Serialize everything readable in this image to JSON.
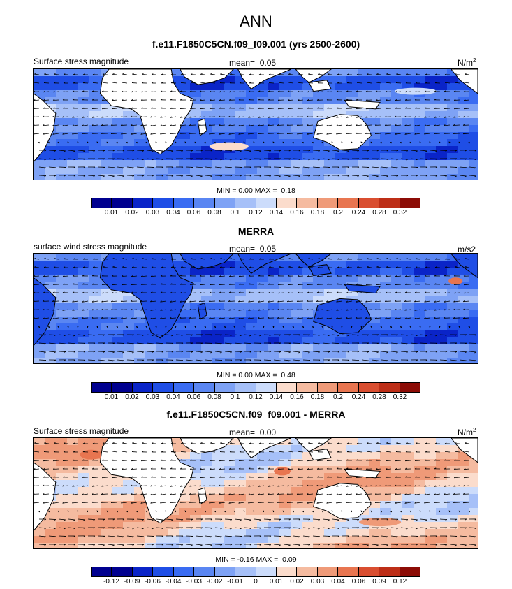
{
  "title": "ANN",
  "colors": {
    "seq": [
      "#00008f",
      "#0a24c8",
      "#1f4ee6",
      "#3a6cf2",
      "#5a86f2",
      "#7ea2f5",
      "#a6c0f8",
      "#ccdcfb",
      "#fbdccc",
      "#f5bba0",
      "#ef9a78",
      "#e87550",
      "#d94e30",
      "#bd2e17",
      "#8c0c06"
    ],
    "land": "#ffffff"
  },
  "panels": [
    {
      "id": "model",
      "title": "f.e11.F1850C5CN.f09_f09.001 (yrs 2500-2600)",
      "left_label": "Surface stress magnitude",
      "mean_label": "mean=",
      "mean_value": "0.05",
      "units_main": "N/m",
      "units_sup": "2",
      "min_label": "MIN =",
      "min_value": "0.00",
      "max_label": "MAX =",
      "max_value": "0.18",
      "colorbar_labels": [
        "0.01",
        "0.02",
        "0.03",
        "0.04",
        "0.06",
        "0.08",
        "0.1",
        "0.12",
        "0.14",
        "0.16",
        "0.18",
        "0.2",
        "0.24",
        "0.28",
        "0.32"
      ]
    },
    {
      "id": "obs",
      "title": "MERRA",
      "left_label": "surface wind stress magnitude",
      "mean_label": "mean=",
      "mean_value": "0.05",
      "units_main": "m/s2",
      "units_sup": "",
      "min_label": "MIN =",
      "min_value": "0.00",
      "max_label": "MAX =",
      "max_value": "0.48",
      "colorbar_labels": [
        "0.01",
        "0.02",
        "0.03",
        "0.04",
        "0.06",
        "0.08",
        "0.1",
        "0.12",
        "0.14",
        "0.16",
        "0.18",
        "0.2",
        "0.24",
        "0.28",
        "0.32"
      ]
    },
    {
      "id": "diff",
      "title": "f.e11.F1850C5CN.f09_f09.001 - MERRA",
      "left_label": "Surface stress magnitude",
      "mean_label": "mean=",
      "mean_value": "0.00",
      "units_main": "N/m",
      "units_sup": "2",
      "min_label": "MIN =",
      "min_value": "-0.16",
      "max_label": "MAX =",
      "max_value": "0.09",
      "colorbar_labels": [
        "-0.12",
        "-0.09",
        "-0.06",
        "-0.04",
        "-0.03",
        "-0.02",
        "-0.01",
        "0",
        "0.01",
        "0.02",
        "0.03",
        "0.04",
        "0.06",
        "0.09",
        "0.12"
      ]
    }
  ],
  "chart_data": [
    {
      "type": "heatmap",
      "title": "f.e11.F1850C5CN.f09_f09.001 (yrs 2500-2600)",
      "variable": "Surface stress magnitude",
      "units": "N/m2",
      "mean": 0.05,
      "min": 0.0,
      "max": 0.18,
      "levels": [
        0.01,
        0.02,
        0.03,
        0.04,
        0.06,
        0.08,
        0.1,
        0.12,
        0.14,
        0.16,
        0.18,
        0.2,
        0.24,
        0.28,
        0.32
      ]
    },
    {
      "type": "heatmap",
      "title": "MERRA",
      "variable": "surface wind stress magnitude",
      "units": "m/s2",
      "mean": 0.05,
      "min": 0.0,
      "max": 0.48,
      "levels": [
        0.01,
        0.02,
        0.03,
        0.04,
        0.06,
        0.08,
        0.1,
        0.12,
        0.14,
        0.16,
        0.18,
        0.2,
        0.24,
        0.28,
        0.32
      ]
    },
    {
      "type": "heatmap",
      "title": "f.e11.F1850C5CN.f09_f09.001 - MERRA",
      "variable": "Surface stress magnitude",
      "units": "N/m2",
      "mean": 0.0,
      "min": -0.16,
      "max": 0.09,
      "levels": [
        -0.12,
        -0.09,
        -0.06,
        -0.04,
        -0.03,
        -0.02,
        -0.01,
        0,
        0.01,
        0.02,
        0.03,
        0.04,
        0.06,
        0.09,
        0.12
      ]
    }
  ]
}
